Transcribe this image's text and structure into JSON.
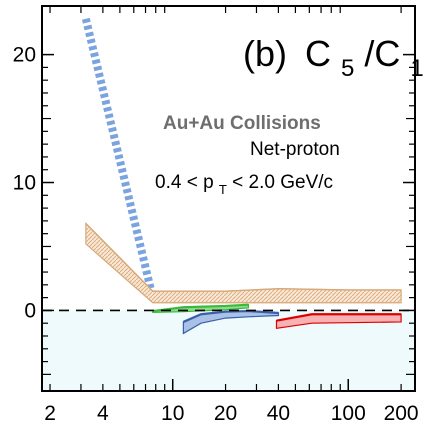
{
  "chart_data": {
    "type": "area",
    "panel_label": "(b)",
    "ratio_label": {
      "prefix": "C",
      "sub1": "5",
      "slash": "/C",
      "sub2": "1"
    },
    "annotations": {
      "system": "Au+Au Collisions",
      "particle": "Net-proton",
      "pt_prefix": "0.4 < p",
      "pt_sub": "T",
      "pt_suffix": " < 2.0 GeV/c"
    },
    "x_scale": "log",
    "xlim": [
      1.8,
      240
    ],
    "ylim": [
      -6.3,
      23.8
    ],
    "x_ticks": [
      2,
      4,
      10,
      20,
      40,
      100,
      200
    ],
    "x_tick_labels": [
      "2",
      "4",
      "10",
      "20",
      "40",
      "100",
      "200"
    ],
    "y_ticks": [
      0,
      10,
      20
    ],
    "y_tick_labels": [
      "0",
      "10",
      "20"
    ],
    "reference_line": 0,
    "shaded_region": {
      "from": -6.3,
      "to": 0,
      "color": "#eefafb"
    },
    "series": [
      {
        "style": "dotted-thick",
        "color": "#7aa3e0",
        "x": [
          3.2,
          7.7,
          10,
          20,
          40,
          100,
          200
        ],
        "y": [
          22.8,
          1.0,
          1.0,
          1.0,
          1.1,
          1.1,
          1.0
        ]
      },
      {
        "style": "hatched-band",
        "color": "#d9a878",
        "fill": "#f7e6d3",
        "x": [
          3.2,
          7.7,
          10,
          20,
          40,
          100,
          200
        ],
        "upper": [
          6.8,
          1.5,
          1.5,
          1.5,
          1.7,
          1.6,
          1.6
        ],
        "lower": [
          5.2,
          0.6,
          0.6,
          0.6,
          0.6,
          0.6,
          0.6
        ]
      },
      {
        "style": "band",
        "color": "#3cb83c",
        "fill": "#8fdc8f",
        "x": [
          7.7,
          11.5,
          20,
          27
        ],
        "upper": [
          -0.05,
          0.25,
          0.35,
          0.45
        ],
        "lower": [
          -0.15,
          -0.1,
          0.05,
          0.2
        ]
      },
      {
        "style": "band",
        "color": "#3a5fa8",
        "fill": "#a9c1e6",
        "x": [
          11.5,
          14.5,
          20,
          27,
          40
        ],
        "upper": [
          -0.9,
          -0.3,
          -0.1,
          -0.05,
          -0.2
        ],
        "lower": [
          -1.8,
          -1.0,
          -0.6,
          -0.5,
          -0.4
        ]
      },
      {
        "style": "band",
        "color": "#dd0000",
        "fill": "#f7b3b3",
        "x": [
          39,
          62,
          200
        ],
        "upper": [
          -0.8,
          -0.3,
          -0.3
        ],
        "lower": [
          -1.4,
          -1.0,
          -0.9
        ]
      }
    ]
  }
}
